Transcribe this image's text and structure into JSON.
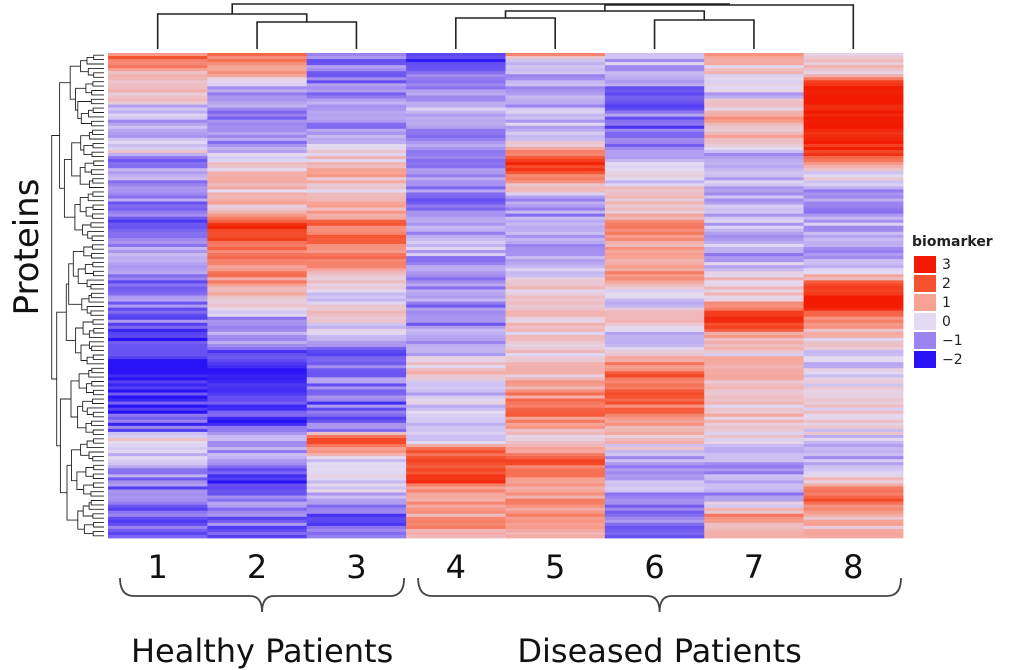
{
  "chart_data": {
    "type": "heatmap",
    "ylabel": "Proteins",
    "x_categories": [
      "1",
      "2",
      "3",
      "4",
      "5",
      "6",
      "7",
      "8"
    ],
    "groups": [
      {
        "label": "Healthy Patients",
        "columns": [
          "1",
          "2",
          "3"
        ]
      },
      {
        "label": "Diseased Patients",
        "columns": [
          "4",
          "5",
          "6",
          "7",
          "8"
        ]
      }
    ],
    "legend": {
      "title": "biomarker",
      "placement": "right",
      "entries": [
        {
          "label": "3",
          "value": 3,
          "color": "#f21a00"
        },
        {
          "label": "2",
          "value": 2,
          "color": "#f5522f"
        },
        {
          "label": "1",
          "value": 1,
          "color": "#f7a294"
        },
        {
          "label": "0",
          "value": 0,
          "color": "#e3dbf3"
        },
        {
          "label": "−1",
          "value": -1,
          "color": "#9b84ef"
        },
        {
          "label": "−2",
          "value": -2,
          "color": "#2612f5"
        }
      ]
    },
    "value_range": [
      -2,
      3
    ],
    "column_profiles": [
      [
        [
          0,
          1.6
        ],
        [
          0.02,
          1.6
        ],
        [
          0.04,
          0.5
        ],
        [
          0.06,
          0.3
        ],
        [
          0.09,
          0.6
        ],
        [
          0.11,
          -0.4
        ],
        [
          0.14,
          -0.6
        ],
        [
          0.17,
          -0.9
        ],
        [
          0.2,
          0.2
        ],
        [
          0.22,
          -1.2
        ],
        [
          0.25,
          -0.7
        ],
        [
          0.3,
          -0.9
        ],
        [
          0.34,
          -1.4
        ],
        [
          0.38,
          -1.0
        ],
        [
          0.43,
          -0.6
        ],
        [
          0.47,
          -1.3
        ],
        [
          0.51,
          -1.0
        ],
        [
          0.55,
          -1.2
        ],
        [
          0.6,
          -1.8
        ],
        [
          0.66,
          -1.9
        ],
        [
          0.72,
          -1.7
        ],
        [
          0.78,
          -1.3
        ],
        [
          0.8,
          0.4
        ],
        [
          0.84,
          -0.3
        ],
        [
          0.88,
          -1.0
        ],
        [
          0.92,
          -1.3
        ],
        [
          0.97,
          -1.4
        ],
        [
          1,
          -1.4
        ]
      ],
      [
        [
          0,
          1.5
        ],
        [
          0.03,
          1.2
        ],
        [
          0.06,
          -0.5
        ],
        [
          0.1,
          -0.9
        ],
        [
          0.14,
          -1.0
        ],
        [
          0.18,
          -0.8
        ],
        [
          0.2,
          -0.4
        ],
        [
          0.23,
          0.5
        ],
        [
          0.27,
          0.4
        ],
        [
          0.32,
          0.7
        ],
        [
          0.35,
          2.5
        ],
        [
          0.38,
          2.4
        ],
        [
          0.4,
          1.3
        ],
        [
          0.43,
          1.5
        ],
        [
          0.47,
          1.1
        ],
        [
          0.51,
          0.7
        ],
        [
          0.55,
          -0.8
        ],
        [
          0.58,
          -0.3
        ],
        [
          0.62,
          -1.8
        ],
        [
          0.7,
          -1.9
        ],
        [
          0.77,
          -1.6
        ],
        [
          0.8,
          -0.6
        ],
        [
          0.84,
          -0.8
        ],
        [
          0.88,
          -2.0
        ],
        [
          0.92,
          -0.9
        ],
        [
          0.96,
          -1.2
        ],
        [
          1,
          -1.1
        ]
      ],
      [
        [
          0,
          -1.2
        ],
        [
          0.05,
          -1.0
        ],
        [
          0.1,
          -0.9
        ],
        [
          0.15,
          -0.8
        ],
        [
          0.22,
          0.4
        ],
        [
          0.25,
          0.9
        ],
        [
          0.28,
          0.0
        ],
        [
          0.32,
          0.8
        ],
        [
          0.36,
          1.7
        ],
        [
          0.39,
          1.4
        ],
        [
          0.43,
          1.7
        ],
        [
          0.46,
          0.8
        ],
        [
          0.5,
          -0.5
        ],
        [
          0.54,
          0.3
        ],
        [
          0.58,
          -0.2
        ],
        [
          0.62,
          -1.2
        ],
        [
          0.67,
          -0.9
        ],
        [
          0.72,
          -1.3
        ],
        [
          0.78,
          -1.0
        ],
        [
          0.8,
          2.6
        ],
        [
          0.84,
          -0.4
        ],
        [
          0.87,
          -0.3
        ],
        [
          0.9,
          -0.1
        ],
        [
          0.94,
          -1.3
        ],
        [
          0.98,
          -1.2
        ],
        [
          1,
          -1.4
        ]
      ],
      [
        [
          0,
          -1.9
        ],
        [
          0.03,
          -1.3
        ],
        [
          0.07,
          -0.9
        ],
        [
          0.12,
          -0.5
        ],
        [
          0.16,
          -0.8
        ],
        [
          0.2,
          -1.0
        ],
        [
          0.25,
          -0.6
        ],
        [
          0.3,
          -1.1
        ],
        [
          0.35,
          -0.8
        ],
        [
          0.4,
          -0.5
        ],
        [
          0.45,
          -1.0
        ],
        [
          0.5,
          -0.8
        ],
        [
          0.55,
          -1.0
        ],
        [
          0.6,
          -0.7
        ],
        [
          0.66,
          0.4
        ],
        [
          0.7,
          -0.3
        ],
        [
          0.76,
          0.0
        ],
        [
          0.8,
          -0.4
        ],
        [
          0.82,
          1.5
        ],
        [
          0.86,
          2.0
        ],
        [
          0.88,
          3.0
        ],
        [
          0.9,
          1.2
        ],
        [
          0.95,
          1.0
        ],
        [
          1,
          1.1
        ]
      ],
      [
        [
          0,
          0.9
        ],
        [
          0.02,
          -0.6
        ],
        [
          0.05,
          -0.5
        ],
        [
          0.1,
          -0.7
        ],
        [
          0.15,
          -0.4
        ],
        [
          0.18,
          -0.3
        ],
        [
          0.22,
          2.7
        ],
        [
          0.26,
          1.4
        ],
        [
          0.3,
          -0.6
        ],
        [
          0.35,
          -0.8
        ],
        [
          0.4,
          -0.5
        ],
        [
          0.45,
          -0.2
        ],
        [
          0.5,
          0.5
        ],
        [
          0.55,
          0.3
        ],
        [
          0.6,
          0.1
        ],
        [
          0.65,
          0.5
        ],
        [
          0.7,
          1.2
        ],
        [
          0.75,
          1.5
        ],
        [
          0.8,
          0.4
        ],
        [
          0.84,
          2.0
        ],
        [
          0.88,
          1.4
        ],
        [
          0.92,
          1.0
        ],
        [
          0.96,
          1.3
        ],
        [
          1,
          1.1
        ]
      ],
      [
        [
          0,
          -0.4
        ],
        [
          0.04,
          -0.6
        ],
        [
          0.08,
          -1.2
        ],
        [
          0.13,
          -1.1
        ],
        [
          0.17,
          -1.5
        ],
        [
          0.21,
          -0.4
        ],
        [
          0.25,
          -0.1
        ],
        [
          0.28,
          0.2
        ],
        [
          0.32,
          0.5
        ],
        [
          0.36,
          1.7
        ],
        [
          0.4,
          1.0
        ],
        [
          0.43,
          0.5
        ],
        [
          0.47,
          1.5
        ],
        [
          0.5,
          -0.2
        ],
        [
          0.55,
          0.3
        ],
        [
          0.6,
          -0.6
        ],
        [
          0.65,
          1.6
        ],
        [
          0.7,
          2.0
        ],
        [
          0.75,
          1.4
        ],
        [
          0.8,
          0.5
        ],
        [
          0.85,
          -0.9
        ],
        [
          0.9,
          -0.6
        ],
        [
          0.95,
          -1.1
        ],
        [
          1,
          -1.0
        ]
      ],
      [
        [
          0,
          0.8
        ],
        [
          0.04,
          0.3
        ],
        [
          0.08,
          -0.4
        ],
        [
          0.13,
          1.0
        ],
        [
          0.17,
          0.6
        ],
        [
          0.21,
          -0.9
        ],
        [
          0.25,
          -0.4
        ],
        [
          0.3,
          -0.6
        ],
        [
          0.36,
          -0.3
        ],
        [
          0.42,
          -0.7
        ],
        [
          0.47,
          0.4
        ],
        [
          0.5,
          0.2
        ],
        [
          0.55,
          2.7
        ],
        [
          0.58,
          1.2
        ],
        [
          0.62,
          0.3
        ],
        [
          0.66,
          0.8
        ],
        [
          0.7,
          0.1
        ],
        [
          0.75,
          0.5
        ],
        [
          0.8,
          0.3
        ],
        [
          0.84,
          -0.6
        ],
        [
          0.88,
          -0.7
        ],
        [
          0.92,
          -0.9
        ],
        [
          0.96,
          1.3
        ],
        [
          1,
          0.4
        ]
      ],
      [
        [
          0,
          0.3
        ],
        [
          0.04,
          0.2
        ],
        [
          0.06,
          3.0
        ],
        [
          0.1,
          3.0
        ],
        [
          0.15,
          3.0
        ],
        [
          0.2,
          2.6
        ],
        [
          0.24,
          0.3
        ],
        [
          0.3,
          -1.0
        ],
        [
          0.35,
          -0.6
        ],
        [
          0.4,
          -0.9
        ],
        [
          0.45,
          -0.3
        ],
        [
          0.48,
          2.2
        ],
        [
          0.52,
          3.0
        ],
        [
          0.55,
          1.1
        ],
        [
          0.6,
          0.2
        ],
        [
          0.65,
          -0.2
        ],
        [
          0.7,
          0.4
        ],
        [
          0.75,
          0.1
        ],
        [
          0.78,
          0.0
        ],
        [
          0.82,
          -0.5
        ],
        [
          0.86,
          -0.6
        ],
        [
          0.92,
          2.0
        ],
        [
          0.96,
          0.6
        ],
        [
          1,
          0.5
        ]
      ]
    ]
  }
}
